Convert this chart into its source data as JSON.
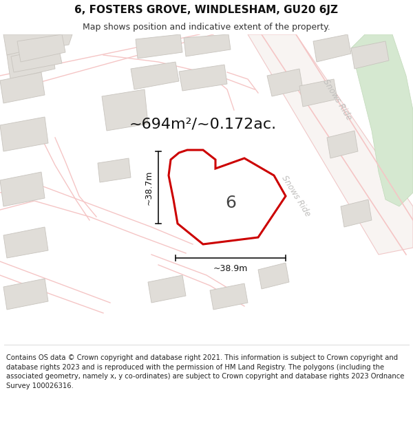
{
  "title": "6, FOSTERS GROVE, WINDLESHAM, GU20 6JZ",
  "subtitle": "Map shows position and indicative extent of the property.",
  "area_label": "~694m²/~0.172ac.",
  "plot_number": "6",
  "dim_width": "~38.9m",
  "dim_height": "~38.7m",
  "footer": "Contains OS data © Crown copyright and database right 2021. This information is subject to Crown copyright and database rights 2023 and is reproduced with the permission of HM Land Registry. The polygons (including the associated geometry, namely x, y co-ordinates) are subject to Crown copyright and database rights 2023 Ordnance Survey 100026316.",
  "map_bg": "#ffffff",
  "road_color": "#f5c5c5",
  "road_edge": "#f0b0b0",
  "plot_fill": "#ffffff",
  "plot_outline_color": "#cc0000",
  "building_color": "#e0ddd8",
  "building_edge": "#c8c4be",
  "green_area": "#d5e8d0",
  "green_edge": "#c0d8b8",
  "snows_ride_bg": "#f0eeec",
  "dim_color": "#111111",
  "label_color": "#111111",
  "snows_label_color": "#bbbbbb",
  "title_fontsize": 11,
  "subtitle_fontsize": 9,
  "area_label_fontsize": 16,
  "plot_label_fontsize": 18,
  "dim_fontsize": 9,
  "footer_fontsize": 7.2,
  "snows_ride_label": "Snows Ride"
}
